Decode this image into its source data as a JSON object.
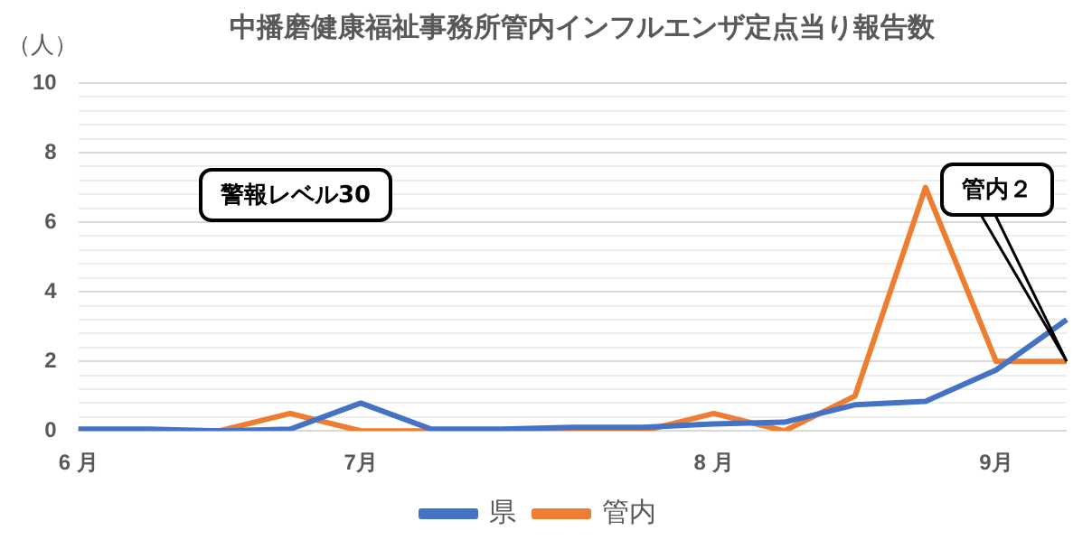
{
  "chart_data": {
    "type": "line",
    "title": "中播磨健康福祉事務所管内インフルエンザ定点当り報告数",
    "ylabel": "（人）",
    "categories": [
      "6 月",
      null,
      null,
      null,
      "7月",
      null,
      null,
      null,
      null,
      "8 月",
      null,
      null,
      null,
      "9月",
      null
    ],
    "series": [
      {
        "name": "県",
        "color": "#4472c4",
        "values": [
          0.05,
          0.05,
          0,
          0.05,
          0.8,
          0.05,
          0.05,
          0.1,
          0.1,
          0.2,
          0.25,
          0.75,
          0.85,
          1.75,
          3.2
        ]
      },
      {
        "name": "管内",
        "color": "#ed7d31",
        "values": [
          0,
          0,
          0,
          0.5,
          0,
          0,
          0,
          0,
          0,
          0.5,
          0,
          1,
          7,
          2,
          2
        ]
      }
    ],
    "ylim": [
      0,
      10
    ],
    "yticks": [
      0,
      {
        "value": 0.4,
        "label": null
      },
      {
        "value": 0.8,
        "label": null
      },
      {
        "value": 1.2,
        "label": null
      },
      {
        "value": 1.6,
        "label": null
      },
      2,
      {
        "value": 2.4,
        "label": null
      },
      {
        "value": 2.8,
        "label": null
      },
      {
        "value": 3.2,
        "label": null
      },
      {
        "value": 3.6,
        "label": null
      },
      4,
      {
        "value": 4.4,
        "label": null
      },
      {
        "value": 4.8,
        "label": null
      },
      {
        "value": 5.2,
        "label": null
      },
      {
        "value": 5.6,
        "label": null
      },
      6,
      {
        "value": 6.4,
        "label": null
      },
      {
        "value": 6.8,
        "label": null
      },
      {
        "value": 7.2,
        "label": null
      },
      {
        "value": 7.6,
        "label": null
      },
      8,
      {
        "value": 8.4,
        "label": null
      },
      {
        "value": 8.8,
        "label": null
      },
      {
        "value": 9.2,
        "label": null
      },
      {
        "value": 9.6,
        "label": null
      },
      10
    ],
    "grid": "y",
    "legend": "bottom",
    "marker": "none",
    "line_style": "solid",
    "annotations": [
      "警報レベル30",
      "管内２"
    ]
  }
}
